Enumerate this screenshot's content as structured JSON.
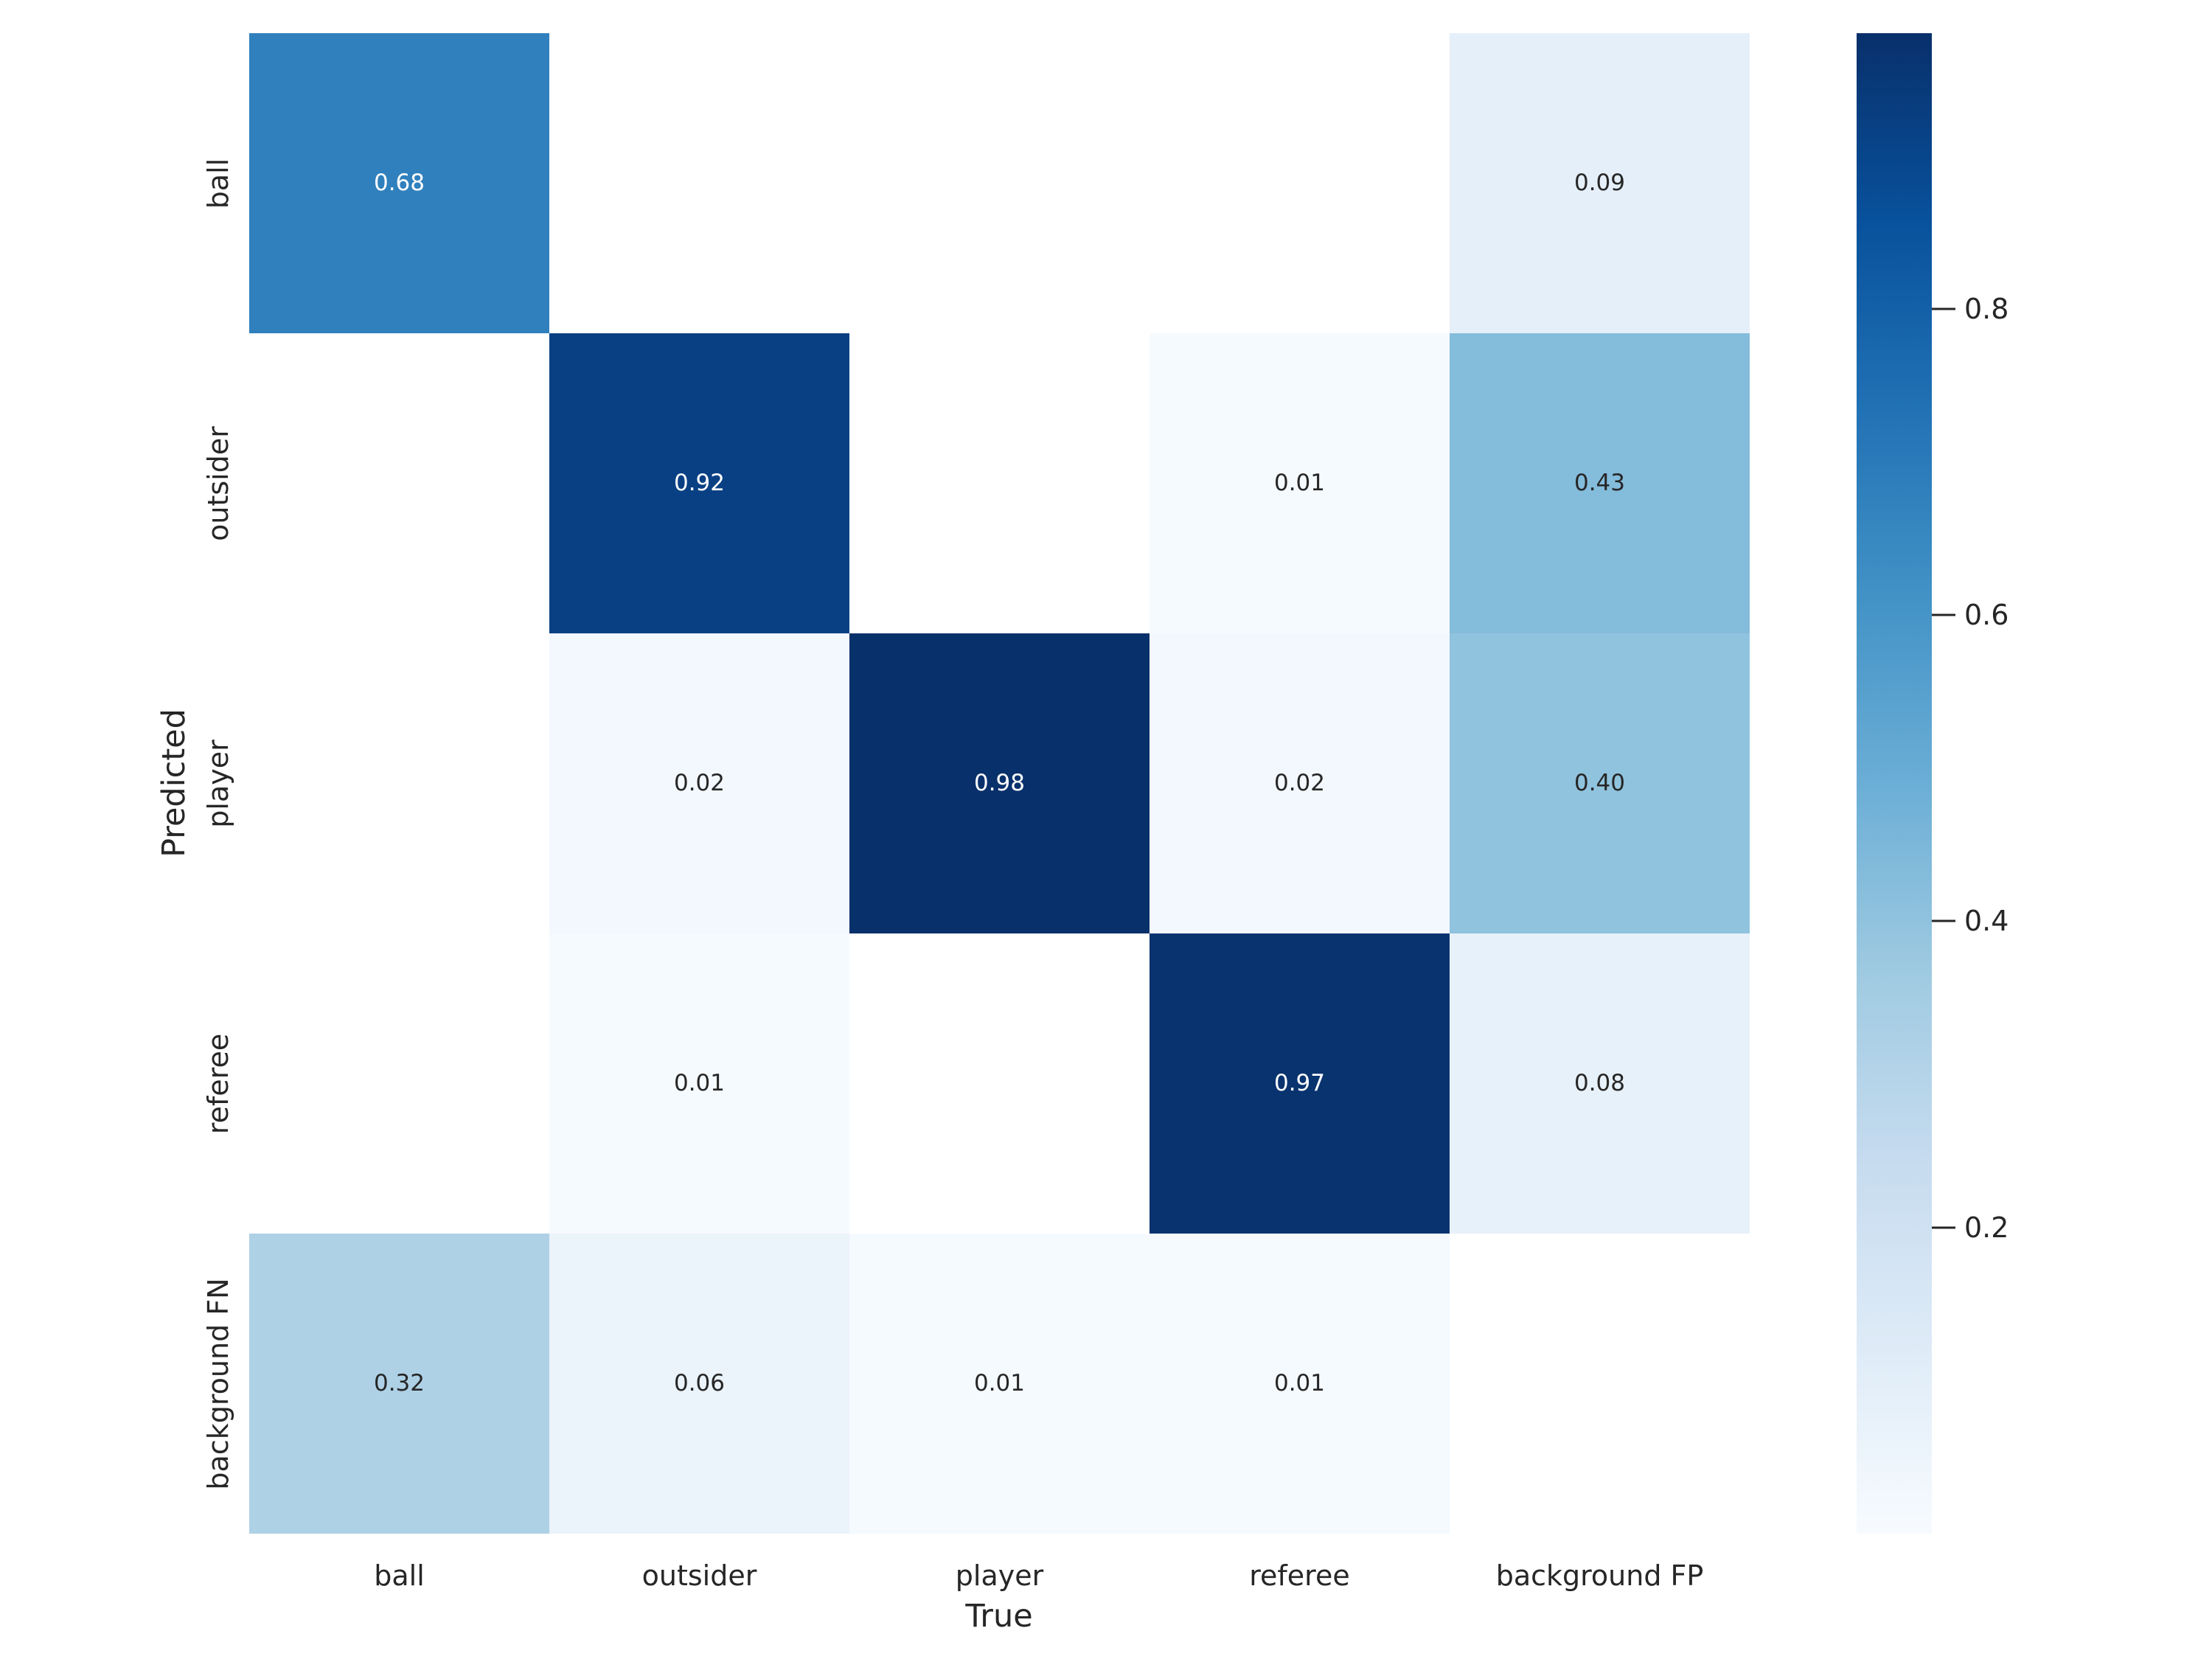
{
  "colors": {
    "background": "#ffffff",
    "tick_text": "#262626",
    "annotation_dark_text": "#262626",
    "annotation_light_text": "#ffffff",
    "tick_mark": "#262626"
  },
  "chart_data": {
    "type": "heatmap",
    "title": "",
    "xlabel": "True",
    "ylabel": "Predicted",
    "x_categories": [
      "ball",
      "outsider",
      "player",
      "referee",
      "background FP"
    ],
    "y_categories": [
      "ball",
      "outsider",
      "player",
      "referee",
      "background FN"
    ],
    "rows": [
      [
        0.68,
        null,
        null,
        null,
        0.09
      ],
      [
        null,
        0.92,
        null,
        0.01,
        0.43
      ],
      [
        null,
        0.02,
        0.98,
        0.02,
        0.4
      ],
      [
        null,
        0.01,
        null,
        0.97,
        0.08
      ],
      [
        0.32,
        0.06,
        0.01,
        0.01,
        null
      ]
    ],
    "annotation_decimals": 2,
    "empty_cell_color": "#ffffff",
    "colormap_name": "Blues",
    "colormap_stops": [
      [
        0.0,
        "#f7fbff"
      ],
      [
        0.125,
        "#deebf7"
      ],
      [
        0.25,
        "#c6dbef"
      ],
      [
        0.375,
        "#9ecae1"
      ],
      [
        0.5,
        "#6baed6"
      ],
      [
        0.625,
        "#4292c6"
      ],
      [
        0.75,
        "#2171b5"
      ],
      [
        0.875,
        "#08519c"
      ],
      [
        1.0,
        "#08306b"
      ]
    ],
    "vmin": 0.0,
    "vmax": 0.98,
    "colorbar_ticks": [
      0.8,
      0.6,
      0.4,
      0.2
    ],
    "colorbar_tick_decimals": 1,
    "legend_position": "right",
    "grid": "off"
  }
}
